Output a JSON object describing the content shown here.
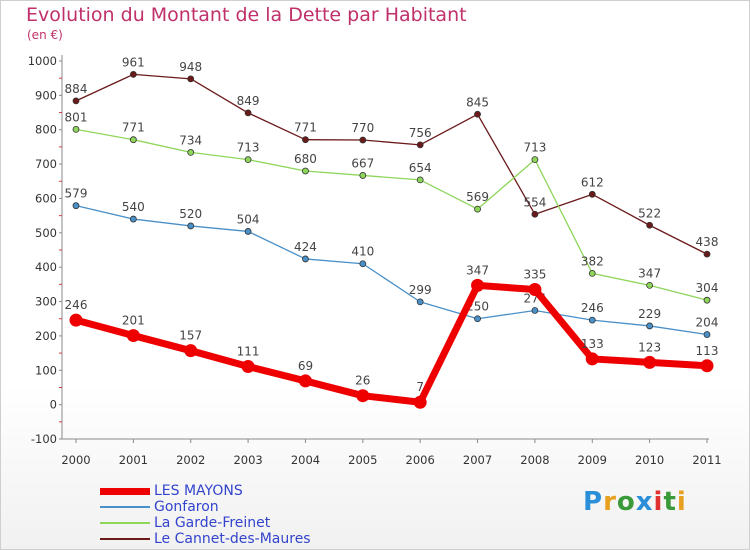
{
  "chart_data": {
    "type": "line",
    "title": "Evolution du Montant de la Dette par Habitant",
    "subtitle": "(en €)",
    "x": [
      "2000",
      "2001",
      "2002",
      "2003",
      "2004",
      "2005",
      "2006",
      "2007",
      "2008",
      "2009",
      "2010",
      "2011"
    ],
    "ylim": [
      -100,
      1000
    ],
    "yticks": [
      -100,
      0,
      100,
      200,
      300,
      400,
      500,
      600,
      700,
      800,
      900,
      1000
    ],
    "grid": false,
    "legend_position": "bottom-left",
    "series": [
      {
        "name": "Le Cannet-des-Maures",
        "color": "#6b1a1a",
        "width": 1.3,
        "values": [
          884,
          961,
          948,
          849,
          771,
          770,
          756,
          845,
          554,
          612,
          522,
          438
        ],
        "labels": [
          "884",
          "961",
          "948",
          "849",
          "771",
          "770",
          "756",
          "845",
          "554",
          "612",
          "522",
          "438"
        ]
      },
      {
        "name": "La Garde-Freinet",
        "color": "#8ed65a",
        "width": 1.3,
        "values": [
          801,
          771,
          734,
          713,
          680,
          667,
          654,
          569,
          713,
          382,
          347,
          304
        ],
        "labels": [
          "801",
          "771",
          "734",
          "713",
          "680",
          "667",
          "654",
          "569",
          "713",
          "382",
          "347",
          "304"
        ]
      },
      {
        "name": "Gonfaron",
        "color": "#4a90c8",
        "width": 1.3,
        "values": [
          579,
          540,
          520,
          504,
          424,
          410,
          299,
          250,
          274,
          246,
          229,
          204
        ],
        "labels": [
          "579",
          "540",
          "520",
          "504",
          "424",
          "410",
          "299",
          "250",
          "274",
          "246",
          "229",
          "204"
        ]
      },
      {
        "name": "LES MAYONS",
        "color": "#ee0000",
        "width": 7,
        "values": [
          246,
          201,
          157,
          111,
          69,
          26,
          7,
          347,
          335,
          133,
          123,
          113
        ],
        "labels": [
          "246",
          "201",
          "157",
          "111",
          "69",
          "26",
          "7",
          "347",
          "335",
          "133",
          "123",
          "113"
        ]
      }
    ]
  },
  "legend": {
    "items": [
      {
        "label": "LES MAYONS",
        "color": "#ee0000",
        "thickness": 7
      },
      {
        "label": "Gonfaron",
        "color": "#4a90c8",
        "thickness": 1.5
      },
      {
        "label": "La Garde-Freinet",
        "color": "#8ed65a",
        "thickness": 1.5
      },
      {
        "label": "Le Cannet-des-Maures",
        "color": "#6b1a1a",
        "thickness": 1.5
      }
    ],
    "text_color": "#3344cc"
  },
  "logo": {
    "letters": [
      "P",
      "r",
      "o",
      "x",
      "i",
      "t",
      "i"
    ],
    "colors": [
      "#2a8fd8",
      "#e8a020",
      "#3a9a3a",
      "#2a8fd8",
      "#e03030",
      "#3a9a3a",
      "#e8a020"
    ]
  }
}
